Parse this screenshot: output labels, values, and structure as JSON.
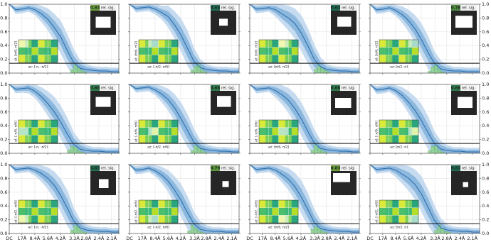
{
  "axes": {
    "xlim": [
      0,
      0.51
    ],
    "ylim": [
      0,
      1
    ],
    "y2lim": [
      0,
      1
    ],
    "threshold": 0.143,
    "x": [
      0,
      0.03,
      0.06,
      0.09,
      0.12,
      0.15,
      0.18,
      0.21,
      0.24,
      0.27,
      0.3,
      0.33,
      0.36,
      0.39,
      0.42,
      0.45,
      0.48,
      0.51
    ],
    "xticks": [
      {
        "value": 0,
        "label": "DC"
      },
      {
        "value": 0.059,
        "label": "17Å"
      },
      {
        "value": 0.119,
        "label": "8.4Å"
      },
      {
        "value": 0.179,
        "label": "5.6Å"
      },
      {
        "value": 0.238,
        "label": "4.2Å"
      },
      {
        "value": 0.303,
        "label": "3.3Å"
      },
      {
        "value": 0.357,
        "label": "2.8Å"
      },
      {
        "value": 0.417,
        "label": "2.4Å"
      },
      {
        "value": 0.476,
        "label": "2.1Å"
      }
    ],
    "yticks": [
      {
        "value": 0,
        "label": "0.0"
      },
      {
        "value": 0.2,
        "label": "0.2"
      },
      {
        "value": 0.4,
        "label": "0.4"
      },
      {
        "value": 0.6,
        "label": "0.6"
      },
      {
        "value": 0.8,
        "label": "0.8"
      },
      {
        "value": 1,
        "label": "1.0"
      }
    ],
    "y2ticks": [
      {
        "value": 0,
        "label": "0.0"
      },
      {
        "value": 0.2,
        "label": "0.2"
      },
      {
        "value": 0.4,
        "label": "0.4"
      },
      {
        "value": 0.6,
        "label": "0.6"
      },
      {
        "value": 0.8,
        "label": "0.8"
      },
      {
        "value": 1,
        "label": "1.0"
      }
    ],
    "y2color": "#2a9d2a"
  },
  "chart_data": [
    {
      "type": "line",
      "score": 0.83,
      "score_color": "#6a9e3a",
      "badge_label": "rel. sig.",
      "az_label": "az: [-π, -π/2]",
      "el_label": "el: [π/6, π/2]",
      "color": "#2f6fae",
      "values": [
        1.0,
        0.92,
        0.93,
        0.95,
        0.92,
        0.86,
        0.78,
        0.66,
        0.52,
        0.33,
        0.15,
        0.07,
        0.05,
        0.04,
        0.03,
        0.03,
        0.02,
        0.02
      ],
      "errors": [
        0,
        0.03,
        0.03,
        0.03,
        0.04,
        0.06,
        0.08,
        0.1,
        0.12,
        0.12,
        0.1,
        0.06,
        0.04,
        0.03,
        0.03,
        0.03,
        0.03,
        0.03
      ],
      "hist": {
        "bins": [
          0.285,
          0.3,
          0.315,
          0.33,
          0.345,
          0.36
        ],
        "values": [
          0.05,
          0.12,
          0.08,
          0.04,
          0.02
        ],
        "color": "#8fd18f"
      }
    },
    {
      "type": "line",
      "score": 0.63,
      "score_color": "#1f6f4f",
      "badge_label": "rel. sig.",
      "az_label": "az: [-π/2, π/6]",
      "el_label": "el: [π/6, π/2]",
      "color": "#2f6fae",
      "values": [
        1.0,
        0.94,
        0.95,
        0.96,
        0.93,
        0.88,
        0.82,
        0.7,
        0.55,
        0.36,
        0.17,
        0.08,
        0.05,
        0.04,
        0.03,
        0.03,
        0.02,
        0.02
      ],
      "errors": [
        0,
        0.03,
        0.03,
        0.03,
        0.04,
        0.05,
        0.08,
        0.1,
        0.12,
        0.13,
        0.1,
        0.06,
        0.04,
        0.03,
        0.03,
        0.03,
        0.03,
        0.03
      ],
      "hist": {
        "bins": [
          0.285,
          0.3,
          0.315,
          0.33,
          0.345,
          0.36
        ],
        "values": [
          0.04,
          0.1,
          0.12,
          0.05,
          0.02
        ],
        "color": "#8fd18f"
      }
    },
    {
      "type": "line",
      "score": 0.63,
      "score_color": "#1f6f4f",
      "badge_label": "rel. sig.",
      "az_label": "az: [π/6, π/2]",
      "el_label": "el: [π/6, π/2]",
      "color": "#2f6fae",
      "values": [
        1.0,
        0.93,
        0.94,
        0.95,
        0.92,
        0.86,
        0.8,
        0.72,
        0.58,
        0.4,
        0.2,
        0.09,
        0.05,
        0.04,
        0.03,
        0.03,
        0.02,
        0.02
      ],
      "errors": [
        0,
        0.03,
        0.03,
        0.03,
        0.05,
        0.07,
        0.09,
        0.11,
        0.13,
        0.13,
        0.11,
        0.07,
        0.04,
        0.03,
        0.03,
        0.03,
        0.03,
        0.03
      ],
      "hist": {
        "bins": [
          0.3,
          0.315,
          0.33,
          0.345,
          0.36,
          0.375
        ],
        "values": [
          0.06,
          0.11,
          0.07,
          0.04,
          0.02
        ],
        "color": "#8fd18f"
      }
    },
    {
      "type": "line",
      "score": 0.78,
      "score_color": "#4f8f3f",
      "badge_label": "rel. sig.",
      "az_label": "az: [π/2, π]",
      "el_label": "el: [π/6, π/2]",
      "color": "#2f6fae",
      "values": [
        1.0,
        0.92,
        0.93,
        0.95,
        0.91,
        0.85,
        0.76,
        0.64,
        0.48,
        0.3,
        0.14,
        0.06,
        0.04,
        0.03,
        0.03,
        0.02,
        0.02,
        0.02
      ],
      "errors": [
        0,
        0.03,
        0.03,
        0.03,
        0.04,
        0.06,
        0.08,
        0.1,
        0.12,
        0.12,
        0.09,
        0.06,
        0.04,
        0.03,
        0.03,
        0.03,
        0.03,
        0.03
      ],
      "hist": {
        "bins": [
          0.27,
          0.285,
          0.3,
          0.315,
          0.33,
          0.345
        ],
        "values": [
          0.03,
          0.09,
          0.12,
          0.06,
          0.02
        ],
        "color": "#8fd18f"
      }
    },
    {
      "type": "line",
      "score": 0.66,
      "score_color": "#2e7d4a",
      "badge_label": "rel. sig.",
      "az_label": "az: [-π, -π/2]",
      "el_label": "el: [-π/6, π/6]",
      "color": "#2f6fae",
      "values": [
        1.0,
        0.93,
        0.94,
        0.95,
        0.9,
        0.82,
        0.72,
        0.6,
        0.45,
        0.28,
        0.13,
        0.06,
        0.04,
        0.03,
        0.03,
        0.02,
        0.02,
        0.02
      ],
      "errors": [
        0,
        0.03,
        0.03,
        0.04,
        0.05,
        0.07,
        0.09,
        0.11,
        0.12,
        0.12,
        0.09,
        0.06,
        0.04,
        0.03,
        0.03,
        0.03,
        0.03,
        0.03
      ],
      "hist": {
        "bins": [
          0.27,
          0.285,
          0.3,
          0.315,
          0.33,
          0.345
        ],
        "values": [
          0.05,
          0.1,
          0.09,
          0.04,
          0.02
        ],
        "color": "#8fd18f"
      }
    },
    {
      "type": "line",
      "score": 0.66,
      "score_color": "#2e7d4a",
      "badge_label": "rel. sig.",
      "az_label": "az: [-π/2, π/6]",
      "el_label": "el: [-π/6, π/6]",
      "color": "#2f6fae",
      "values": [
        1.0,
        0.94,
        0.95,
        0.96,
        0.92,
        0.86,
        0.78,
        0.66,
        0.5,
        0.33,
        0.16,
        0.07,
        0.05,
        0.04,
        0.03,
        0.03,
        0.02,
        0.02
      ],
      "errors": [
        0,
        0.03,
        0.03,
        0.03,
        0.04,
        0.06,
        0.08,
        0.1,
        0.12,
        0.12,
        0.1,
        0.06,
        0.04,
        0.03,
        0.03,
        0.03,
        0.03,
        0.03
      ],
      "hist": {
        "bins": [
          0.285,
          0.3,
          0.315,
          0.33,
          0.345,
          0.36
        ],
        "values": [
          0.04,
          0.11,
          0.09,
          0.05,
          0.02
        ],
        "color": "#8fd18f"
      }
    },
    {
      "type": "line",
      "score": 0.66,
      "score_color": "#2e7d4a",
      "badge_label": "rel. sig.",
      "az_label": "az: [π/6, π/2]",
      "el_label": "el: [-π/6, π/6]",
      "color": "#2f6fae",
      "values": [
        1.0,
        0.93,
        0.94,
        0.95,
        0.91,
        0.85,
        0.77,
        0.65,
        0.5,
        0.32,
        0.15,
        0.07,
        0.05,
        0.04,
        0.03,
        0.03,
        0.02,
        0.02
      ],
      "errors": [
        0,
        0.03,
        0.03,
        0.03,
        0.05,
        0.07,
        0.09,
        0.11,
        0.12,
        0.12,
        0.1,
        0.06,
        0.04,
        0.03,
        0.03,
        0.03,
        0.03,
        0.03
      ],
      "hist": {
        "bins": [
          0.285,
          0.3,
          0.315,
          0.33,
          0.345,
          0.36
        ],
        "values": [
          0.05,
          0.12,
          0.07,
          0.04,
          0.02
        ],
        "color": "#8fd18f"
      }
    },
    {
      "type": "line",
      "score": 0.66,
      "score_color": "#2e7d4a",
      "badge_label": "rel. sig.",
      "az_label": "az: [π/2, π]",
      "el_label": "el: [-π/6, π/6]",
      "color": "#2f6fae",
      "values": [
        1.0,
        0.92,
        0.93,
        0.95,
        0.91,
        0.84,
        0.74,
        0.62,
        0.47,
        0.3,
        0.14,
        0.06,
        0.04,
        0.03,
        0.03,
        0.02,
        0.02,
        0.02
      ],
      "errors": [
        0,
        0.03,
        0.03,
        0.03,
        0.04,
        0.06,
        0.08,
        0.1,
        0.12,
        0.12,
        0.09,
        0.06,
        0.04,
        0.03,
        0.03,
        0.03,
        0.03,
        0.03
      ],
      "hist": {
        "bins": [
          0.27,
          0.285,
          0.3,
          0.315,
          0.33,
          0.345
        ],
        "values": [
          0.04,
          0.1,
          0.11,
          0.05,
          0.02
        ],
        "color": "#8fd18f"
      }
    },
    {
      "type": "line",
      "score": 0.63,
      "score_color": "#1f6f4f",
      "badge_label": "rel. sig.",
      "az_label": "az: [-π, -π/2]",
      "el_label": "el: [-π/2, -π/6]",
      "color": "#2f6fae",
      "values": [
        1.0,
        0.93,
        0.94,
        0.95,
        0.92,
        0.87,
        0.8,
        0.7,
        0.55,
        0.37,
        0.18,
        0.08,
        0.05,
        0.04,
        0.03,
        0.03,
        0.02,
        0.02
      ],
      "errors": [
        0,
        0.03,
        0.03,
        0.03,
        0.04,
        0.06,
        0.08,
        0.1,
        0.12,
        0.13,
        0.1,
        0.06,
        0.04,
        0.03,
        0.03,
        0.03,
        0.03,
        0.03
      ],
      "hist": {
        "bins": [
          0.285,
          0.3,
          0.315,
          0.33,
          0.345,
          0.36
        ],
        "values": [
          0.05,
          0.11,
          0.1,
          0.04,
          0.02
        ],
        "color": "#8fd18f"
      }
    },
    {
      "type": "line",
      "score": 0.79,
      "score_color": "#5a963c",
      "badge_label": "rel. sig.",
      "az_label": "az: [-π/2, π/6]",
      "el_label": "el: [-π/2, -π/6]",
      "color": "#2f6fae",
      "values": [
        1.0,
        0.92,
        0.93,
        0.95,
        0.91,
        0.85,
        0.76,
        0.63,
        0.48,
        0.3,
        0.14,
        0.06,
        0.04,
        0.03,
        0.03,
        0.02,
        0.02,
        0.02
      ],
      "errors": [
        0,
        0.03,
        0.03,
        0.03,
        0.04,
        0.06,
        0.08,
        0.1,
        0.12,
        0.12,
        0.09,
        0.06,
        0.04,
        0.03,
        0.03,
        0.03,
        0.03,
        0.03
      ],
      "hist": {
        "bins": [
          0.27,
          0.285,
          0.3,
          0.315,
          0.33,
          0.345
        ],
        "values": [
          0.04,
          0.12,
          0.08,
          0.04,
          0.02
        ],
        "color": "#8fd18f"
      }
    },
    {
      "type": "line",
      "score": 0.83,
      "score_color": "#6a9e3a",
      "badge_label": "rel. sig.",
      "az_label": "az: [π/6, π/2]",
      "el_label": "el: [-π/2, -π/6]",
      "color": "#2f6fae",
      "values": [
        1.0,
        0.93,
        0.94,
        0.95,
        0.92,
        0.86,
        0.79,
        0.68,
        0.53,
        0.35,
        0.16,
        0.07,
        0.05,
        0.04,
        0.03,
        0.03,
        0.02,
        0.02
      ],
      "errors": [
        0,
        0.03,
        0.03,
        0.03,
        0.04,
        0.06,
        0.08,
        0.1,
        0.12,
        0.12,
        0.1,
        0.06,
        0.04,
        0.03,
        0.03,
        0.03,
        0.03,
        0.03
      ],
      "hist": {
        "bins": [
          0.285,
          0.3,
          0.315,
          0.33,
          0.345,
          0.36
        ],
        "values": [
          0.06,
          0.1,
          0.08,
          0.04,
          0.02
        ],
        "color": "#8fd18f"
      }
    },
    {
      "type": "line",
      "score": 0.63,
      "score_color": "#1f6f4f",
      "badge_label": "rel. sig.",
      "az_label": "az: [π/2, π]",
      "el_label": "el: [-π/2, -π/6]",
      "color": "#2f6fae",
      "values": [
        1.0,
        0.93,
        0.94,
        0.95,
        0.92,
        0.86,
        0.8,
        0.71,
        0.57,
        0.38,
        0.19,
        0.08,
        0.05,
        0.04,
        0.03,
        0.03,
        0.02,
        0.02
      ],
      "errors": [
        0,
        0.03,
        0.03,
        0.03,
        0.05,
        0.07,
        0.09,
        0.11,
        0.13,
        0.13,
        0.11,
        0.07,
        0.04,
        0.03,
        0.03,
        0.03,
        0.03,
        0.03
      ],
      "hist": {
        "bins": [
          0.3,
          0.315,
          0.33,
          0.345,
          0.36,
          0.375
        ],
        "values": [
          0.05,
          0.12,
          0.08,
          0.03,
          0.02
        ],
        "color": "#8fd18f"
      }
    }
  ]
}
